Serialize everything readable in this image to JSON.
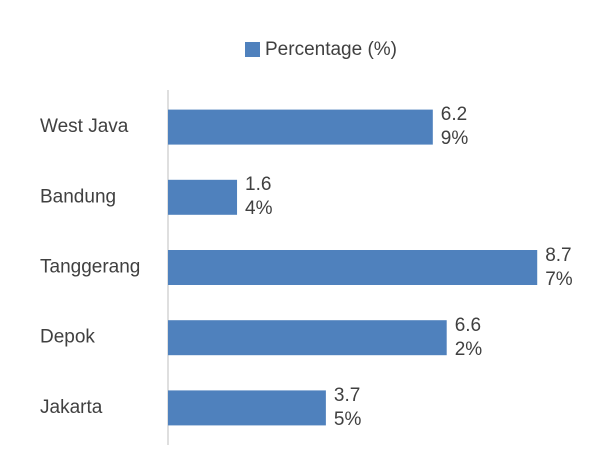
{
  "chart_data": {
    "type": "hbar",
    "categories": [
      "West Java",
      "Bandung",
      "Tanggerang",
      "Depok",
      "Jakarta"
    ],
    "series": [
      {
        "name": "Percentage (%)",
        "color": "#4f81bd",
        "values": [
          6.29,
          1.64,
          8.77,
          6.62,
          3.75
        ],
        "value_labels": [
          "6.29%",
          "1.64%",
          "8.77%",
          "6.62%",
          "3.75%"
        ]
      }
    ],
    "xlim": [
      0,
      10
    ],
    "legend": "top"
  }
}
